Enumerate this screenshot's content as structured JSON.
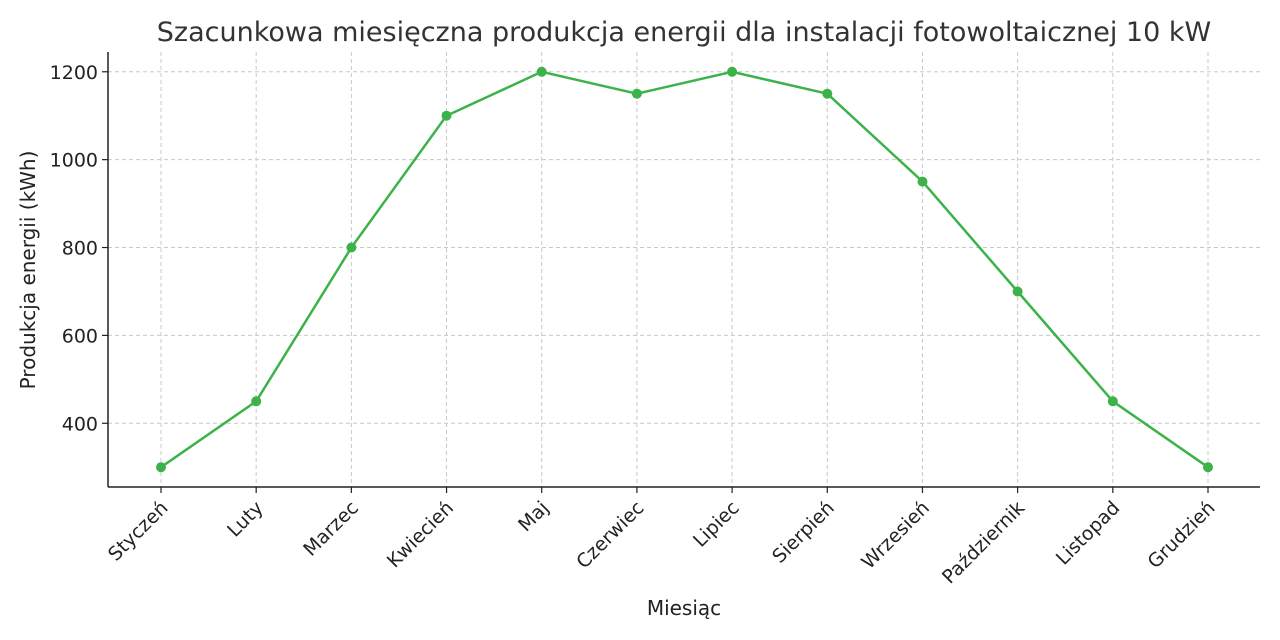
{
  "chart_data": {
    "type": "line",
    "title": "Szacunkowa miesięczna produkcja energii dla instalacji fotowoltaicznej 10 kW",
    "xlabel": "Miesiąc",
    "ylabel": "Produkcja energii (kWh)",
    "categories": [
      "Styczeń",
      "Luty",
      "Marzec",
      "Kwiecień",
      "Maj",
      "Czerwiec",
      "Lipiec",
      "Sierpień",
      "Wrzesień",
      "Październik",
      "Listopad",
      "Grudzień"
    ],
    "series": [
      {
        "values": [
          300,
          450,
          800,
          1100,
          1200,
          1150,
          1200,
          1150,
          950,
          700,
          450,
          300
        ],
        "color": "#3cb34a",
        "marker": "circle"
      }
    ],
    "ylim": [
      255,
      1245
    ],
    "yticks": [
      400,
      600,
      800,
      1000,
      1200
    ],
    "grid": true,
    "legend": "none"
  }
}
